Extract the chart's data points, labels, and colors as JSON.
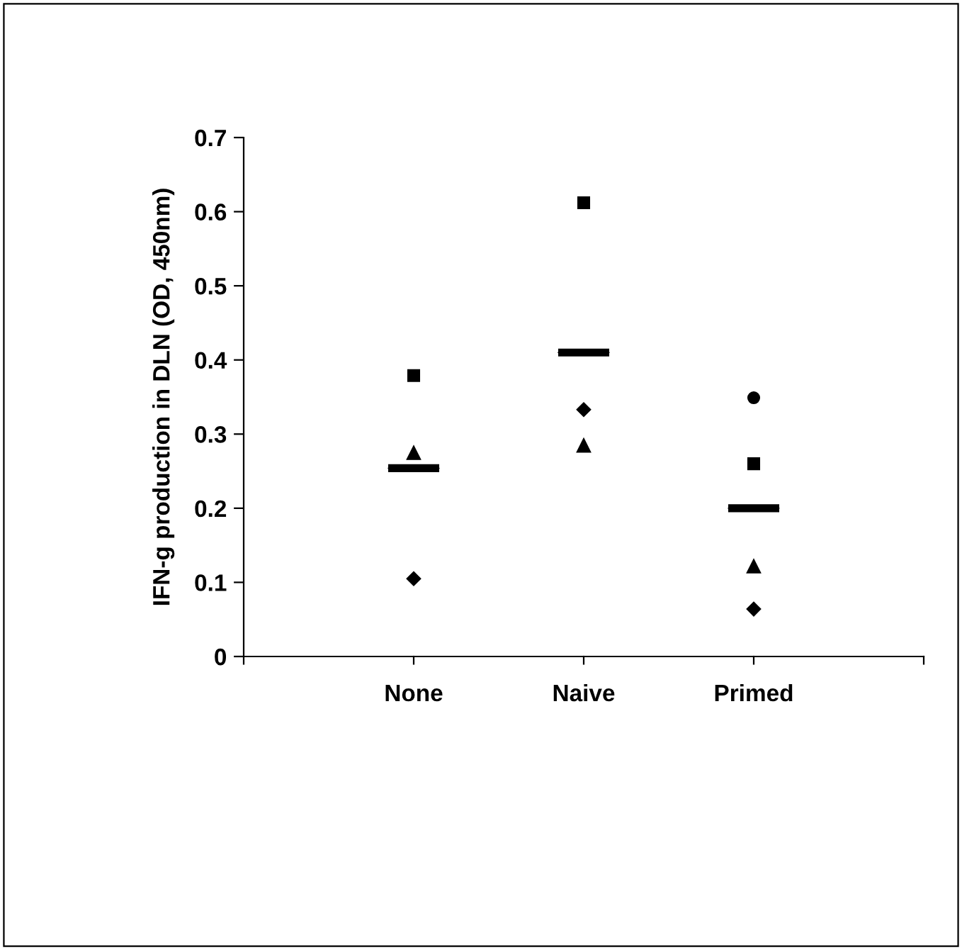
{
  "chart_data": {
    "type": "scatter",
    "ylabel": "IFN-g production in DLN (OD, 450nm)",
    "categories": [
      null,
      "None",
      "Naive",
      "Primed",
      null
    ],
    "ylim": [
      0,
      0.7
    ],
    "yticks": [
      {
        "value": 0,
        "label": "0"
      },
      0.1,
      0.2,
      0.3,
      0.4,
      0.5,
      0.6,
      0.7
    ],
    "grid": false,
    "legend": false,
    "series": [
      {
        "color": "#000000",
        "marker": "diamond",
        "values": [
          null,
          0.105,
          0.333,
          0.064,
          null
        ]
      },
      {
        "color": "#000000",
        "marker": "square",
        "values": [
          null,
          0.379,
          0.612,
          0.26,
          null
        ]
      },
      {
        "color": "#000000",
        "marker": "triangle",
        "values": [
          null,
          0.275,
          0.285,
          0.122,
          null
        ]
      },
      {
        "color": "#000000",
        "marker": "circle",
        "values": [
          null,
          null,
          null,
          0.349,
          null
        ]
      },
      {
        "type": "box",
        "color": "#000000",
        "boxes": [
          null,
          {
            "low": 0.254,
            "q1": 0.254,
            "median": 0.254,
            "q3": 0.254,
            "high": 0.254
          },
          {
            "low": 0.41,
            "q1": 0.41,
            "median": 0.41,
            "q3": 0.41,
            "high": 0.41
          },
          {
            "low": 0.2,
            "q1": 0.2,
            "median": 0.2,
            "q3": 0.2,
            "high": 0.2
          },
          null
        ]
      }
    ]
  }
}
